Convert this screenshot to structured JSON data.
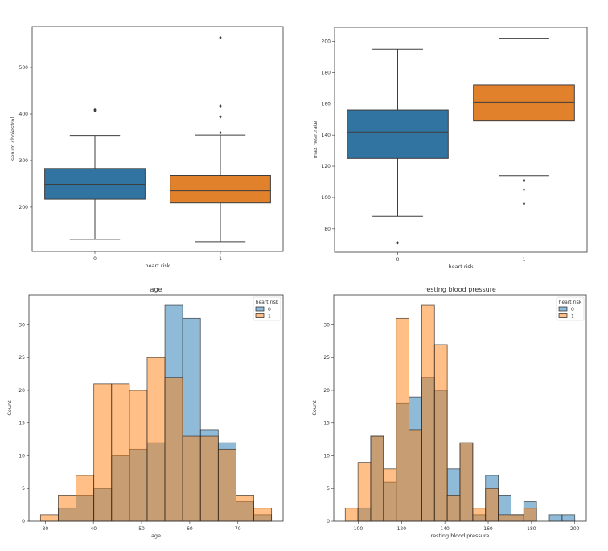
{
  "colors": {
    "box0": "#3274a1",
    "box1": "#e1812c",
    "hist0": "#1f77b4",
    "hist1": "#ff7f0e"
  },
  "chart_data": [
    {
      "type": "box",
      "title": "",
      "xlabel": "heart risk",
      "ylabel": "serum cholestrol",
      "categories": [
        "0",
        "1"
      ],
      "ylim": [
        105,
        588
      ],
      "yticks": [
        200,
        300,
        400,
        500
      ],
      "boxes": [
        {
          "whisker_low": 131,
          "q1": 217,
          "median": 249,
          "q3": 283,
          "whisker_high": 354,
          "outliers": [
            407,
            409
          ]
        },
        {
          "whisker_low": 126,
          "q1": 209,
          "median": 235,
          "q3": 268,
          "whisker_high": 355,
          "outliers": [
            360,
            394,
            417,
            564
          ]
        }
      ]
    },
    {
      "type": "box",
      "title": "",
      "xlabel": "heart risk",
      "ylabel": "max heartrate",
      "categories": [
        "0",
        "1"
      ],
      "ylim": [
        65,
        209
      ],
      "yticks": [
        80,
        100,
        120,
        140,
        160,
        180,
        200
      ],
      "boxes": [
        {
          "whisker_low": 88,
          "q1": 125,
          "median": 142,
          "q3": 156,
          "whisker_high": 195,
          "outliers": [
            71
          ]
        },
        {
          "whisker_low": 114,
          "q1": 149,
          "median": 161,
          "q3": 172,
          "whisker_high": 202,
          "outliers": [
            111,
            105,
            96
          ]
        }
      ]
    },
    {
      "type": "histogram",
      "title": "age",
      "xlabel": "age",
      "ylabel": "Count",
      "xlim": [
        26.6,
        79.4
      ],
      "ylim": [
        0,
        34.6
      ],
      "xticks": [
        30,
        40,
        50,
        60,
        70
      ],
      "yticks": [
        0,
        5,
        10,
        15,
        20,
        25,
        30
      ],
      "bin_start": 29,
      "bin_end": 77,
      "legend": {
        "title": "heart risk",
        "position": "upper right"
      },
      "series": [
        {
          "name": "0",
          "values": [
            0,
            2,
            4,
            5,
            10,
            11,
            12,
            33,
            31,
            14,
            12,
            3,
            1
          ]
        },
        {
          "name": "1",
          "values": [
            1,
            4,
            7,
            21,
            21,
            20,
            25,
            22,
            13,
            13,
            11,
            4,
            2
          ]
        }
      ]
    },
    {
      "type": "histogram",
      "title": "resting blood pressure",
      "xlabel": "resting blood pressure",
      "ylabel": "Count",
      "xlim": [
        88.7,
        205.3
      ],
      "ylim": [
        0,
        34.6
      ],
      "xticks": [
        100,
        120,
        140,
        160,
        180,
        200
      ],
      "yticks": [
        0,
        5,
        10,
        15,
        20,
        25,
        30
      ],
      "bin_start": 94,
      "bin_end": 200,
      "legend": {
        "title": "heart risk",
        "position": "upper right"
      },
      "series": [
        {
          "name": "0",
          "values": [
            0,
            2,
            13,
            6,
            18,
            19,
            22,
            20,
            8,
            12,
            1,
            7,
            4,
            1,
            3,
            0,
            1,
            1
          ]
        },
        {
          "name": "1",
          "values": [
            2,
            9,
            13,
            8,
            31,
            14,
            33,
            27,
            4,
            12,
            2,
            5,
            1,
            1,
            2,
            0,
            0,
            0
          ]
        }
      ]
    }
  ]
}
